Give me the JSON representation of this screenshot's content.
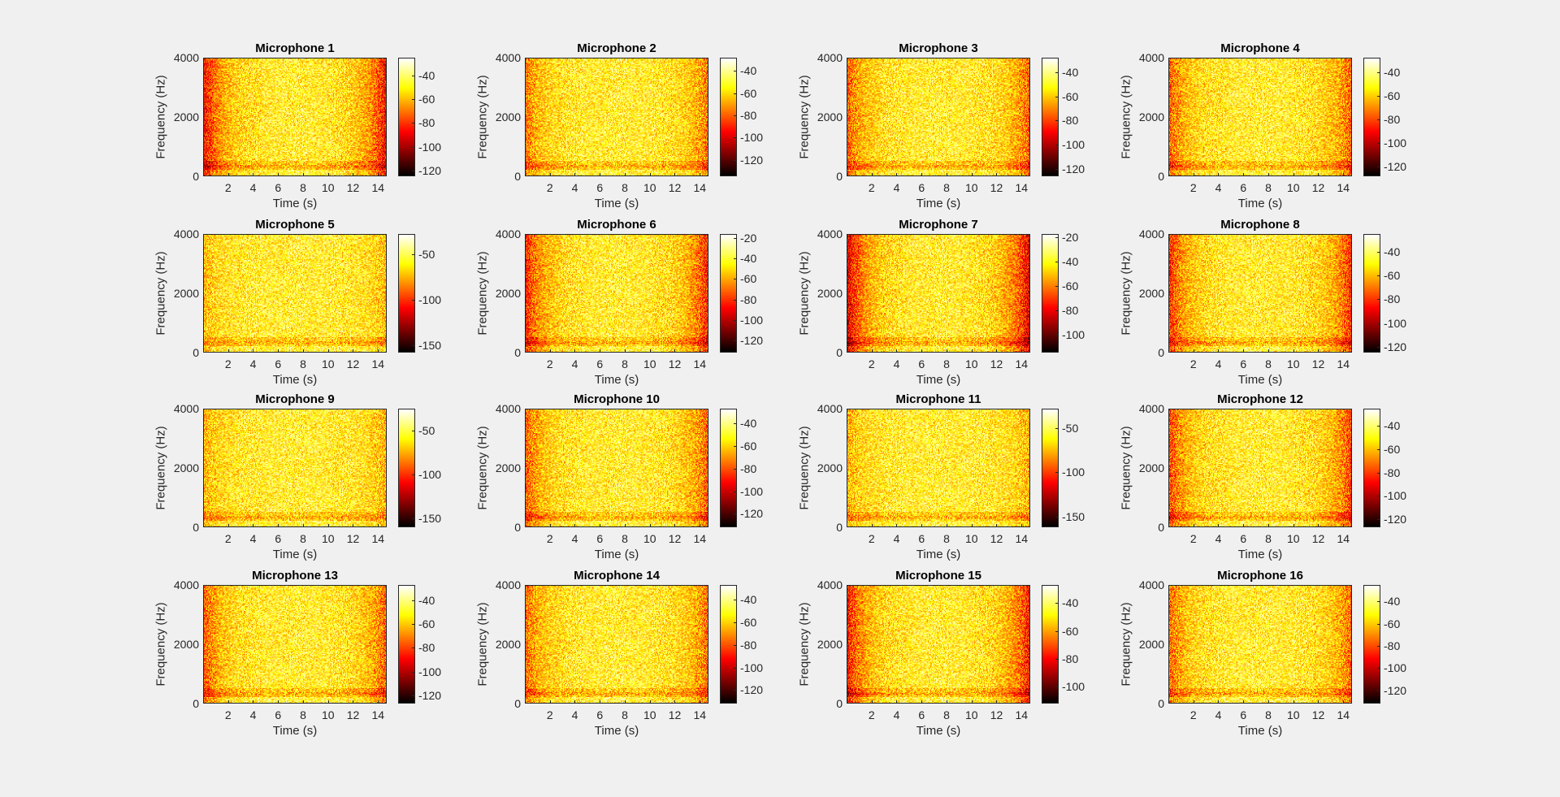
{
  "chart_data": {
    "type": "heatmap",
    "colormap": "hot",
    "xlabel": "Time (s)",
    "ylabel": "Frequency (Hz)",
    "xlim": [
      0,
      14.7
    ],
    "ylim": [
      0,
      4000
    ],
    "xticks": [
      2,
      4,
      6,
      8,
      10,
      12,
      14
    ],
    "yticks": [
      0,
      2000,
      4000
    ],
    "panels": [
      {
        "title": "Microphone 1",
        "clim": [
          -125,
          -25
        ],
        "cticks": [
          -40,
          -60,
          -80,
          -100,
          -120
        ]
      },
      {
        "title": "Microphone 2",
        "clim": [
          -135,
          -28
        ],
        "cticks": [
          -40,
          -60,
          -80,
          -100,
          -120
        ]
      },
      {
        "title": "Microphone 3",
        "clim": [
          -126,
          -28
        ],
        "cticks": [
          -40,
          -60,
          -80,
          -100,
          -120
        ]
      },
      {
        "title": "Microphone 4",
        "clim": [
          -128,
          -28
        ],
        "cticks": [
          -40,
          -60,
          -80,
          -100,
          -120
        ]
      },
      {
        "title": "Microphone 5",
        "clim": [
          -158,
          -28
        ],
        "cticks": [
          -50,
          -100,
          -150
        ]
      },
      {
        "title": "Microphone 6",
        "clim": [
          -132,
          -16
        ],
        "cticks": [
          -20,
          -40,
          -60,
          -80,
          -100,
          -120
        ]
      },
      {
        "title": "Microphone 7",
        "clim": [
          -115,
          -17
        ],
        "cticks": [
          -20,
          -40,
          -60,
          -80,
          -100
        ]
      },
      {
        "title": "Microphone 8",
        "clim": [
          -125,
          -25
        ],
        "cticks": [
          -40,
          -60,
          -80,
          -100,
          -120
        ]
      },
      {
        "title": "Microphone 9",
        "clim": [
          -160,
          -25
        ],
        "cticks": [
          -50,
          -100,
          -150
        ]
      },
      {
        "title": "Microphone 10",
        "clim": [
          -132,
          -27
        ],
        "cticks": [
          -40,
          -60,
          -80,
          -100,
          -120
        ]
      },
      {
        "title": "Microphone 11",
        "clim": [
          -162,
          -28
        ],
        "cticks": [
          -50,
          -100,
          -150
        ]
      },
      {
        "title": "Microphone 12",
        "clim": [
          -127,
          -25
        ],
        "cticks": [
          -40,
          -60,
          -80,
          -100,
          -120
        ]
      },
      {
        "title": "Microphone 13",
        "clim": [
          -127,
          -27
        ],
        "cticks": [
          -40,
          -60,
          -80,
          -100,
          -120
        ]
      },
      {
        "title": "Microphone 14",
        "clim": [
          -132,
          -27
        ],
        "cticks": [
          -40,
          -60,
          -80,
          -100,
          -120
        ]
      },
      {
        "title": "Microphone 15",
        "clim": [
          -112,
          -27
        ],
        "cticks": [
          -40,
          -60,
          -80,
          -100
        ]
      },
      {
        "title": "Microphone 16",
        "clim": [
          -132,
          -25
        ],
        "cticks": [
          -40,
          -60,
          -80,
          -100,
          -120
        ]
      }
    ]
  }
}
